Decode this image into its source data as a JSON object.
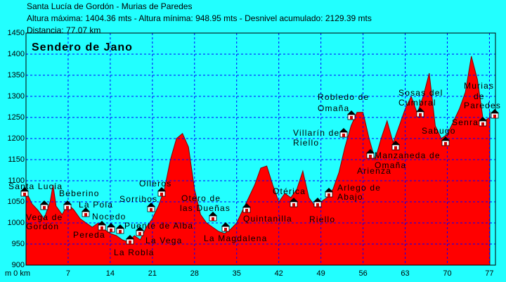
{
  "header": {
    "route": "Santa Lucía de Gordón - Murias de Paredes",
    "stats": "Altura máxima: 1404.36 mts - Altura mínima: 948.95 mts - Desnivel acumulado: 2129.39 mts",
    "distance": "Distancia: 77.07 km"
  },
  "chart_data": {
    "type": "area",
    "title": "Sendero de Jano",
    "x": [
      0,
      1,
      2,
      3,
      4,
      4.5,
      5,
      6,
      7,
      8,
      9,
      10,
      11,
      12,
      13,
      14,
      15,
      16,
      17,
      18,
      19,
      20,
      21,
      22,
      23,
      24,
      25,
      26,
      27,
      28,
      29,
      30,
      31,
      32,
      33,
      34,
      35,
      36,
      37,
      38,
      39,
      40,
      41,
      42,
      43,
      44,
      45,
      46,
      47,
      48,
      49,
      50,
      51,
      52,
      53,
      54,
      55,
      56,
      57,
      58,
      59,
      60,
      61,
      62,
      63,
      64,
      65,
      66,
      67,
      68,
      69,
      70,
      71,
      72,
      73,
      74,
      75,
      76,
      77,
      77.07
    ],
    "values": [
      1075,
      1045,
      1030,
      1010,
      1050,
      1090,
      1040,
      1020,
      1045,
      1030,
      1010,
      1000,
      990,
      1000,
      985,
      975,
      970,
      960,
      955,
      970,
      960,
      990,
      1010,
      1040,
      1080,
      1150,
      1200,
      1212,
      1180,
      1080,
      1020,
      1000,
      990,
      980,
      975,
      985,
      1000,
      1030,
      1060,
      1090,
      1130,
      1135,
      1090,
      1050,
      1070,
      1060,
      1080,
      1123,
      1060,
      1040,
      1050,
      1060,
      1080,
      1120,
      1180,
      1230,
      1262,
      1262,
      1200,
      1150,
      1200,
      1242,
      1190,
      1230,
      1270,
      1300,
      1260,
      1300,
      1355,
      1230,
      1200,
      1210,
      1240,
      1270,
      1310,
      1395,
      1340,
      1240,
      1250,
      1265
    ],
    "color": "#ff0000",
    "xlim": [
      0,
      78
    ],
    "ylim": [
      900,
      1450
    ],
    "xticks": [
      {
        "value": 0,
        "label": "m 0 km"
      },
      7,
      14,
      21,
      28,
      35,
      42,
      49,
      56,
      63,
      70,
      77
    ],
    "yticks": [
      900,
      950,
      1000,
      1050,
      1100,
      1150,
      1200,
      1250,
      1300,
      1350,
      1400,
      1450
    ],
    "grid": true,
    "annotations": [
      "Santa Lucía",
      "Vega de",
      "Gordón",
      "Beberino",
      "La Pola",
      "Nocedo",
      "Pereda",
      "La Robla",
      "Sorribos",
      "Olleros",
      "Puente de Alba",
      "La Vega",
      "Otero de",
      "las Dueñas",
      "La Magdalena",
      "Quintanilla",
      "Otérica",
      "Riello",
      "Villarín de",
      "Riello",
      "Robledo de",
      "Omaña",
      "Arlego de",
      "Abajo",
      "Arienza",
      "Manzaneda de",
      "Omaña",
      "Sosas del",
      "Cumbral",
      "Sabugo",
      "Murias",
      "de",
      "Paredes",
      "Senra"
    ]
  }
}
